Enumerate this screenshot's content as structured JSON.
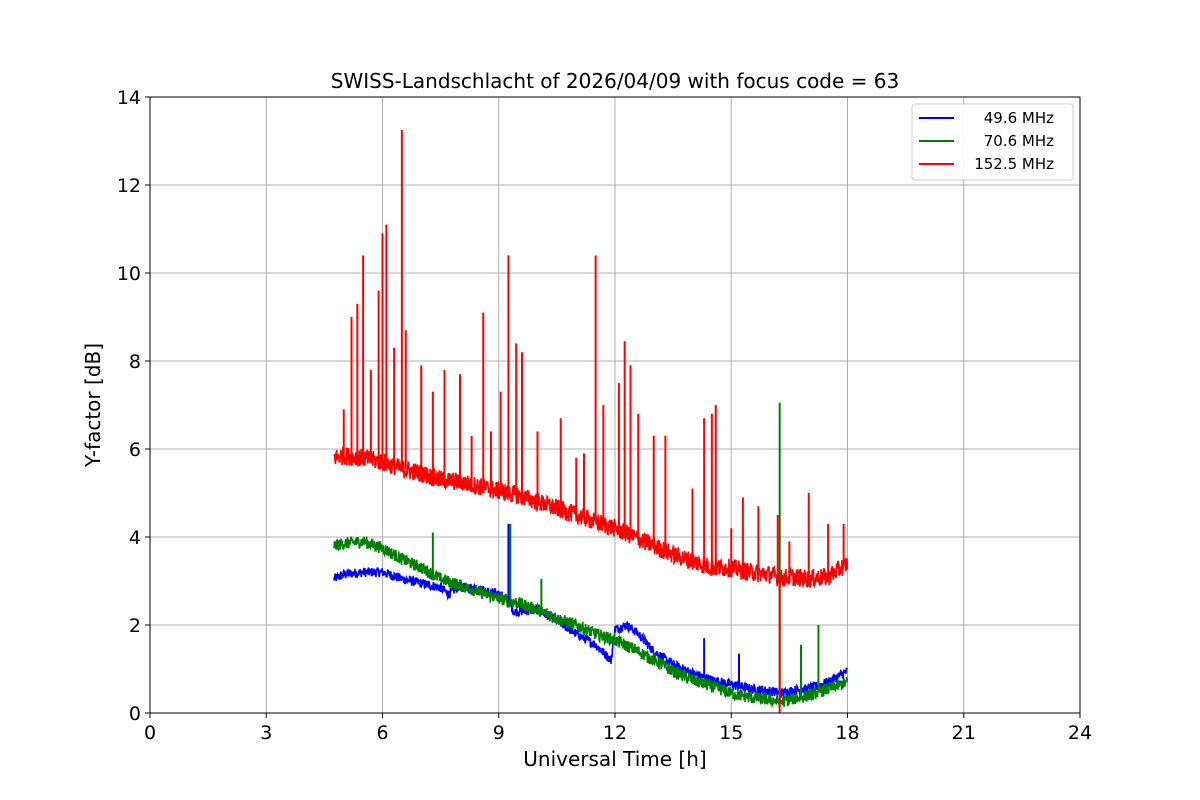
{
  "chart_data": {
    "type": "line",
    "title": "SWISS-Landschlacht of 2026/04/09 with focus code = 63",
    "xlabel": "Universal Time [h]",
    "ylabel": "Y-factor [dB]",
    "xlim": [
      0,
      24
    ],
    "ylim": [
      0,
      14
    ],
    "xticks": [
      0,
      3,
      6,
      9,
      12,
      15,
      18,
      21,
      24
    ],
    "yticks": [
      0,
      2,
      4,
      6,
      8,
      10,
      12,
      14
    ],
    "grid": true,
    "legend_position": "top-right",
    "series": [
      {
        "name": "49.6 MHz",
        "color": "#0000ff",
        "x": [
          4.75,
          5.0,
          5.5,
          6.0,
          6.5,
          7.0,
          7.5,
          7.7,
          8.0,
          8.5,
          9.0,
          9.2,
          9.4,
          10.0,
          10.5,
          11.0,
          11.5,
          11.9,
          12.0,
          12.3,
          12.6,
          13.0,
          13.5,
          14.0,
          14.5,
          15.0,
          15.5,
          16.0,
          16.3,
          16.5,
          17.0,
          17.5,
          18.0
        ],
        "y": [
          3.05,
          3.15,
          3.2,
          3.2,
          3.05,
          2.95,
          2.85,
          2.7,
          2.9,
          2.8,
          2.7,
          2.6,
          2.3,
          2.35,
          2.1,
          1.8,
          1.55,
          1.2,
          1.9,
          2.0,
          1.8,
          1.4,
          1.1,
          0.9,
          0.75,
          0.65,
          0.55,
          0.5,
          0.45,
          0.5,
          0.55,
          0.7,
          0.95
        ]
      },
      {
        "name": "70.6 MHz",
        "color": "#008000",
        "x": [
          4.75,
          5.0,
          5.5,
          6.0,
          6.5,
          7.0,
          7.5,
          8.0,
          8.5,
          9.0,
          9.5,
          10.0,
          10.5,
          11.0,
          11.5,
          12.0,
          12.5,
          13.0,
          13.5,
          14.0,
          14.5,
          15.0,
          15.5,
          16.0,
          16.3,
          16.5,
          17.0,
          17.5,
          18.0
        ],
        "y": [
          3.8,
          3.85,
          3.9,
          3.75,
          3.5,
          3.3,
          3.05,
          2.9,
          2.75,
          2.6,
          2.5,
          2.35,
          2.15,
          2.0,
          1.8,
          1.65,
          1.45,
          1.2,
          0.95,
          0.75,
          0.6,
          0.45,
          0.35,
          0.3,
          0.25,
          0.3,
          0.4,
          0.55,
          0.7
        ]
      },
      {
        "name": "152.5 MHz",
        "color": "#ff0000",
        "x": [
          4.75,
          5.0,
          5.5,
          6.0,
          6.5,
          7.0,
          7.5,
          8.0,
          8.5,
          9.0,
          9.5,
          10.0,
          10.5,
          11.0,
          11.5,
          12.0,
          12.5,
          13.0,
          13.5,
          14.0,
          14.5,
          15.0,
          15.5,
          16.0,
          16.3,
          16.5,
          17.0,
          17.5,
          18.0
        ],
        "y": [
          5.8,
          5.85,
          5.8,
          5.7,
          5.55,
          5.45,
          5.3,
          5.25,
          5.15,
          5.05,
          4.95,
          4.8,
          4.65,
          4.5,
          4.35,
          4.2,
          4.0,
          3.8,
          3.6,
          3.45,
          3.3,
          3.3,
          3.2,
          3.15,
          3.05,
          3.1,
          3.05,
          3.1,
          3.4
        ]
      }
    ],
    "spikes": [
      {
        "series": "49.6 MHz",
        "x": [
          9.25,
          11.85,
          14.3,
          15.2
        ],
        "y": [
          4.3,
          1.2,
          1.7,
          1.35
        ]
      },
      {
        "series": "70.6 MHz",
        "x": [
          7.3,
          9.3,
          10.1,
          16.25,
          16.8,
          17.25
        ],
        "y": [
          4.1,
          4.3,
          3.05,
          7.05,
          1.55,
          2.0
        ]
      },
      {
        "series": "152.5 MHz",
        "x": [
          5.0,
          5.2,
          5.35,
          5.5,
          5.7,
          5.9,
          6.0,
          6.1,
          6.3,
          6.5,
          6.6,
          7.0,
          7.3,
          7.6,
          8.0,
          8.3,
          8.6,
          8.8,
          9.05,
          9.25,
          9.45,
          9.6,
          10.0,
          10.6,
          11.0,
          11.2,
          11.5,
          11.7,
          12.1,
          12.25,
          12.4,
          12.6,
          13.0,
          13.3,
          14.0,
          14.3,
          14.5,
          14.6,
          15.0,
          15.3,
          15.7,
          16.2,
          16.5,
          17.0,
          17.5,
          17.9
        ],
        "y": [
          6.9,
          9.0,
          9.3,
          10.4,
          7.8,
          9.6,
          10.9,
          11.1,
          8.3,
          13.25,
          8.7,
          7.9,
          7.3,
          7.8,
          7.7,
          6.3,
          9.1,
          6.4,
          7.3,
          10.4,
          8.4,
          8.2,
          6.4,
          6.7,
          5.8,
          5.9,
          10.4,
          7.0,
          7.5,
          8.45,
          7.9,
          6.8,
          6.3,
          6.3,
          5.1,
          6.7,
          6.8,
          7.0,
          4.2,
          4.9,
          4.7,
          4.5,
          3.9,
          5.0,
          4.3,
          4.3
        ]
      },
      {
        "series": "152.5 MHz",
        "x": [
          16.25
        ],
        "y": [
          0.0
        ]
      }
    ]
  }
}
